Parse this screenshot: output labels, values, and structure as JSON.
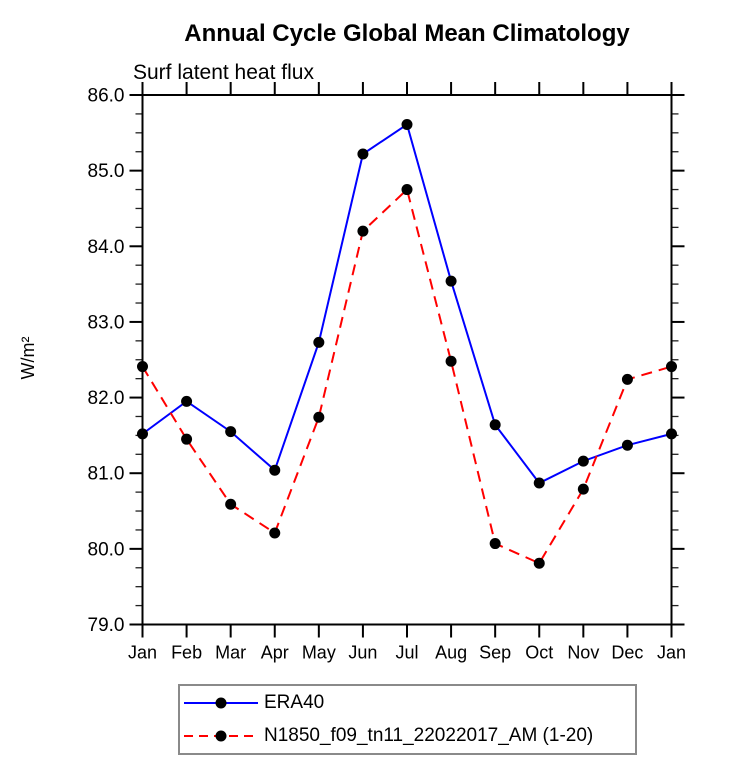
{
  "title": "Annual Cycle Global Mean Climatology",
  "subtitle": "Surf latent heat flux",
  "chart_data": {
    "type": "line",
    "title": "Annual Cycle Global Mean Climatology",
    "subtitle": "Surf latent heat flux",
    "xlabel": "",
    "ylabel": "W/m²",
    "categories": [
      "Jan",
      "Feb",
      "Mar",
      "Apr",
      "May",
      "Jun",
      "Jul",
      "Aug",
      "Sep",
      "Oct",
      "Nov",
      "Dec",
      "Jan"
    ],
    "ylim": [
      79.0,
      86.0
    ],
    "ytick_labels": [
      "79.0",
      "80.0",
      "81.0",
      "82.0",
      "83.0",
      "84.0",
      "85.0",
      "86.0"
    ],
    "ytick_minor_step": 0.25,
    "grid": false,
    "legend_position": "bottom-left",
    "axis_color": "#000000",
    "series": [
      {
        "name": "ERA40",
        "color": "#0000ff",
        "line_style": "solid",
        "marker": "filled-circle",
        "marker_color": "#000000",
        "values": [
          81.52,
          81.95,
          81.55,
          81.04,
          82.73,
          85.22,
          85.61,
          83.54,
          81.64,
          80.87,
          81.16,
          81.37,
          81.52
        ]
      },
      {
        "name": "N1850_f09_tn11_22022017_AM (1-20)",
        "color": "#ff0000",
        "line_style": "dashed",
        "marker": "filled-circle",
        "marker_color": "#000000",
        "values": [
          82.41,
          81.45,
          80.59,
          80.21,
          81.74,
          84.2,
          84.75,
          82.48,
          80.07,
          79.81,
          80.79,
          82.24,
          82.41
        ]
      }
    ]
  }
}
